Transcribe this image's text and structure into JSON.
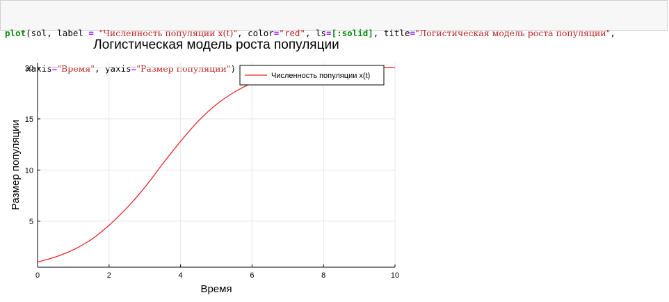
{
  "code_cell": {
    "line1": {
      "fn": "plot",
      "p1": "(sol, label ",
      "eq1": "=",
      "s1": "\"Численность популяции x(t)\"",
      "p2": ", color",
      "eq2": "=",
      "s2": "\"red\"",
      "p3": ", ls",
      "eq3": "=",
      "sym": "[:solid]",
      "p4": ", title",
      "eq4": "=",
      "s3": "\"Логистическая модель роста популяции\"",
      "p5": ","
    },
    "line2": {
      "indent": "    ",
      "p1": "xaxis",
      "eq1": "=",
      "s1": "\"Время\"",
      "p2": ", yaxis",
      "eq2": "=",
      "s2": "\"Размер популяции\"",
      "p3": ")"
    }
  },
  "chart_data": {
    "type": "line",
    "title": "Логистическая модель роста популяции",
    "xlabel": "Время",
    "ylabel": "Размер популяции",
    "xlim": [
      0,
      10
    ],
    "ylim": [
      0.5,
      20.5
    ],
    "xticks": [
      0,
      2,
      4,
      6,
      8,
      10
    ],
    "yticks": [
      5,
      10,
      15,
      20
    ],
    "grid": true,
    "legend_position": "top-right",
    "colors": {
      "series": "#e8262a",
      "grid": "#e6e6e6",
      "axis": "#000000"
    },
    "series": [
      {
        "name": "Численность популяции x(t)",
        "x": [
          0,
          0.5,
          1,
          1.5,
          2,
          2.5,
          3,
          3.5,
          4,
          4.5,
          5,
          5.5,
          6,
          6.5,
          7,
          7.5,
          8,
          8.5,
          9,
          9.5,
          10
        ],
        "values": [
          1.0,
          1.5,
          2.2,
          3.2,
          4.6,
          6.3,
          8.3,
          10.6,
          12.8,
          14.8,
          16.4,
          17.6,
          18.5,
          19.1,
          19.4,
          19.6,
          19.8,
          19.9,
          19.9,
          20.0,
          20.0
        ]
      }
    ]
  }
}
